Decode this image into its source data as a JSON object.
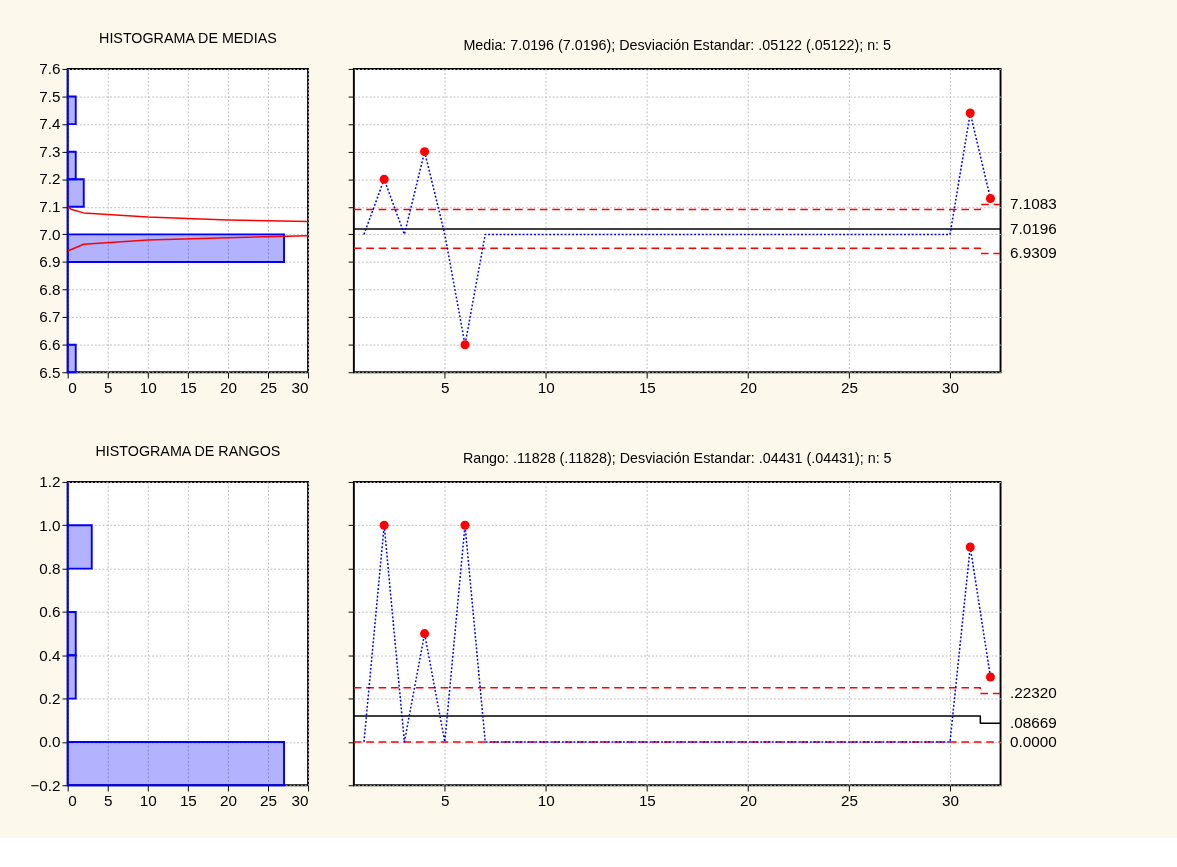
{
  "chart_data": [
    {
      "type": "histogram",
      "orientation": "horizontal",
      "title": "HISTOGRAMA DE MEDIAS",
      "bins": [
        6.5,
        6.6,
        6.7,
        6.8,
        6.9,
        7.0,
        7.1,
        7.2,
        7.3,
        7.4,
        7.5,
        7.6
      ],
      "values": [
        1,
        0,
        0,
        0,
        27,
        0,
        2,
        1,
        0,
        1,
        0
      ],
      "color": "#0000ff",
      "xlim": [
        0,
        30
      ],
      "xticks": [
        0,
        5,
        10,
        15,
        20,
        25,
        30
      ],
      "ylim": [
        6.5,
        7.6
      ],
      "yticks": [
        6.5,
        6.6,
        6.7,
        6.8,
        6.9,
        {
          "value": 7,
          "label": "7.0"
        },
        7.1,
        7.2,
        7.3,
        7.4,
        7.5,
        7.6
      ],
      "grid": true,
      "series": [
        {
          "type": "line",
          "color": "#ff0000",
          "line_style": "solid",
          "x": [
            6.94,
            6.964,
            6.98,
            6.988,
            6.995
          ],
          "values": [
            0,
            2,
            10,
            20,
            30
          ]
        },
        {
          "type": "line",
          "color": "#ff0000",
          "line_style": "solid",
          "x": [
            7.047,
            7.052,
            7.063,
            7.078,
            7.09,
            7.1
          ],
          "values": [
            30,
            20,
            10,
            2,
            0.5,
            0
          ]
        }
      ]
    },
    {
      "type": "line",
      "title": "Media: 7.0196 (7.0196); Desviación Estandar: .05122 (.05122); n: 5",
      "xlim": [
        0.5,
        32.5
      ],
      "xticks": [
        5,
        10,
        15,
        20,
        25,
        30
      ],
      "ylim": [
        6.5,
        7.6
      ],
      "yticks": [
        6.5,
        6.6,
        6.7,
        6.8,
        6.9,
        7,
        7.1,
        7.2,
        7.3,
        7.4,
        7.5,
        7.6
      ],
      "tick_labels": "x",
      "grid": true,
      "series": [
        {
          "type": "line",
          "color": "#ff0000",
          "line_style": "dashed",
          "x": [
            0.5,
            31.5,
            31.5,
            32.5
          ],
          "values": [
            7.09,
            7.09,
            7.1083,
            7.1083
          ],
          "value_labels": [
            null,
            null,
            null,
            "7.1083"
          ]
        },
        {
          "type": "line",
          "color": "#000000",
          "line_style": "solid",
          "x": [
            0.5,
            32.5
          ],
          "values": [
            7.0196,
            7.0196
          ],
          "value_labels": [
            null,
            "7.0196"
          ]
        },
        {
          "type": "line",
          "color": "#ff0000",
          "line_style": "dashed",
          "x": [
            0.5,
            31.5,
            31.5,
            32.5
          ],
          "values": [
            6.95,
            6.95,
            6.9309,
            6.9309
          ],
          "value_labels": [
            null,
            null,
            null,
            "6.9309"
          ]
        },
        {
          "type": "line",
          "color": "#0000ff",
          "line_style": "dotted",
          "x": [
            1,
            2,
            3,
            4,
            5,
            6,
            7,
            8,
            9,
            10,
            11,
            12,
            13,
            14,
            15,
            16,
            17,
            18,
            19,
            20,
            21,
            22,
            23,
            24,
            25,
            26,
            27,
            28,
            29,
            30,
            31,
            32
          ],
          "values": [
            7.0,
            7.2,
            7.0,
            7.3,
            7.0,
            6.6,
            7.0,
            7.0,
            7.0,
            7.0,
            7.0,
            7.0,
            7.0,
            7.0,
            7.0,
            7.0,
            7.0,
            7.0,
            7.0,
            7.0,
            7.0,
            7.0,
            7.0,
            7.0,
            7.0,
            7.0,
            7.0,
            7.0,
            7.0,
            7.0,
            7.44,
            7.13
          ]
        },
        {
          "type": "scatter",
          "color": "#ff0000",
          "marker": "circle",
          "x": [
            2,
            4,
            6,
            31,
            32
          ],
          "values": [
            7.2,
            7.3,
            6.6,
            7.44,
            7.13
          ]
        }
      ]
    },
    {
      "type": "histogram",
      "orientation": "horizontal",
      "title": "HISTOGRAMA DE RANGOS",
      "bins": [
        -0.2,
        0,
        0.2,
        0.4,
        0.6,
        0.8,
        1.0,
        1.2
      ],
      "values": [
        27,
        0,
        1,
        1,
        0,
        3,
        0
      ],
      "color": "#0000ff",
      "xlim": [
        0,
        30
      ],
      "xticks": [
        0,
        5,
        10,
        15,
        20,
        25,
        30
      ],
      "ylim": [
        -0.2,
        1.2
      ],
      "yticks": [
        -0.2,
        {
          "value": 0,
          "label": "0.0"
        },
        0.2,
        0.4,
        0.6,
        0.8,
        {
          "value": 1,
          "label": "1.0"
        },
        1.2
      ],
      "grid": true
    },
    {
      "type": "line",
      "title": "Rango: .11828 (.11828); Desviación Estandar: .04431 (.04431); n: 5",
      "xlim": [
        0.5,
        32.5
      ],
      "xticks": [
        5,
        10,
        15,
        20,
        25,
        30
      ],
      "ylim": [
        -0.2,
        1.2
      ],
      "yticks": [
        -0.2,
        0,
        0.2,
        0.4,
        0.6,
        0.8,
        1,
        1.2
      ],
      "tick_labels": "x",
      "grid": true,
      "series": [
        {
          "type": "line",
          "color": "#ff0000",
          "line_style": "dashed",
          "x": [
            0.5,
            31.5,
            31.5,
            32.5
          ],
          "values": [
            0.25,
            0.25,
            0.2232,
            0.2232
          ],
          "value_labels": [
            null,
            null,
            null,
            ".22320"
          ]
        },
        {
          "type": "line",
          "color": "#000000",
          "line_style": "solid",
          "x": [
            0.5,
            31.5,
            31.5,
            32.5
          ],
          "values": [
            0.12,
            0.12,
            0.08669,
            0.08669
          ],
          "value_labels": [
            null,
            null,
            null,
            ".08669"
          ]
        },
        {
          "type": "line",
          "color": "#ff0000",
          "line_style": "dashed",
          "x": [
            0.5,
            32.5
          ],
          "values": [
            0,
            0
          ],
          "value_labels": [
            null,
            "0.0000"
          ]
        },
        {
          "type": "line",
          "color": "#0000ff",
          "line_style": "dotted",
          "x": [
            1,
            2,
            3,
            4,
            5,
            6,
            7,
            8,
            9,
            10,
            11,
            12,
            13,
            14,
            15,
            16,
            17,
            18,
            19,
            20,
            21,
            22,
            23,
            24,
            25,
            26,
            27,
            28,
            29,
            30,
            31,
            32
          ],
          "values": [
            0,
            1.0,
            0,
            0.5,
            0,
            1.0,
            0,
            0,
            0,
            0,
            0,
            0,
            0,
            0,
            0,
            0,
            0,
            0,
            0,
            0,
            0,
            0,
            0,
            0,
            0,
            0,
            0,
            0,
            0,
            0,
            0.9,
            0.3
          ]
        },
        {
          "type": "scatter",
          "color": "#ff0000",
          "marker": "circle",
          "x": [
            2,
            4,
            6,
            31,
            32
          ],
          "values": [
            1.0,
            0.5,
            1.0,
            0.9,
            0.3
          ]
        }
      ]
    }
  ]
}
